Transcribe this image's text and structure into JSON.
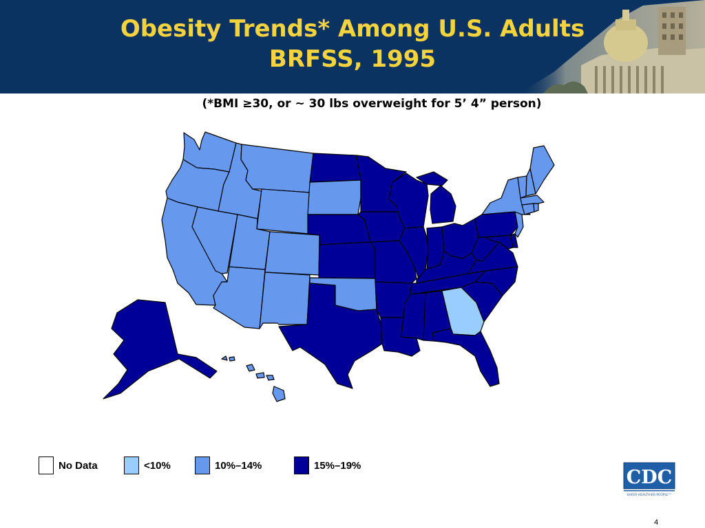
{
  "title_line1": "Obesity Trends* Among U.S. Adults",
  "title_line2": "BRFSS, 1995",
  "subtitle": "(*BMI ≥30, or ~ 30 lbs overweight for 5’ 4” person)",
  "colors": {
    "header_bg": "#0b3361",
    "title_text": "#f5d33c",
    "no_data": "#ffffff",
    "lt10": "#99ccff",
    "r10_14": "#6699ee",
    "r15_19": "#000099"
  },
  "legend": [
    {
      "label": "No Data",
      "color": "#ffffff"
    },
    {
      "label": "<10%",
      "color": "#99ccff"
    },
    {
      "label": "10%–14%",
      "color": "#6699ee"
    },
    {
      "label": "15%–19%",
      "color": "#000099"
    }
  ],
  "states": {
    "AK": "15%–19%",
    "HI": "10%–14%",
    "WA": "10%–14%",
    "OR": "10%–14%",
    "CA": "10%–14%",
    "NV": "10%–14%",
    "ID": "10%–14%",
    "MT": "10%–14%",
    "WY": "10%–14%",
    "UT": "10%–14%",
    "CO": "10%–14%",
    "AZ": "10%–14%",
    "NM": "10%–14%",
    "ND": "15%–19%",
    "SD": "10%–14%",
    "NE": "15%–19%",
    "KS": "15%–19%",
    "OK": "10%–14%",
    "TX": "15%–19%",
    "MN": "15%–19%",
    "IA": "15%–19%",
    "MO": "15%–19%",
    "AR": "15%–19%",
    "LA": "15%–19%",
    "WI": "15%–19%",
    "IL": "15%–19%",
    "MI": "15%–19%",
    "IN": "15%–19%",
    "OH": "15%–19%",
    "KY": "15%–19%",
    "TN": "15%–19%",
    "MS": "15%–19%",
    "AL": "15%–19%",
    "GA": "<10%",
    "FL": "15%–19%",
    "SC": "15%–19%",
    "NC": "15%–19%",
    "VA": "15%–19%",
    "WV": "15%–19%",
    "PA": "15%–19%",
    "NY": "10%–14%",
    "NJ": "10%–14%",
    "DE": "15%–19%",
    "MD": "15%–19%",
    "CT": "10%–14%",
    "RI": "10%–14%",
    "MA": "10%–14%",
    "VT": "10%–14%",
    "NH": "10%–14%",
    "ME": "10%–14%"
  },
  "logo_text": "CDC",
  "logo_tagline": "SAFER·HEALTHIER·PEOPLE™",
  "page_number": "4"
}
